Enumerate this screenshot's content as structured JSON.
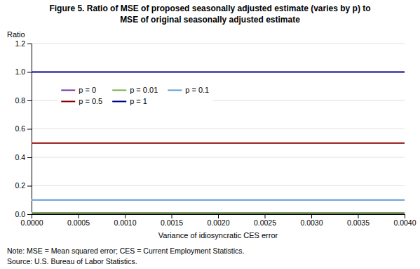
{
  "chart_data": {
    "type": "line",
    "title": "Figure 5. Ratio of MSE of proposed seasonally adjusted estimate (varies by p) to\nMSE of original seasonally adjusted estimate",
    "x_label": "Variance of idiosyncratic CES error",
    "y_label": "Ratio",
    "annotations": [
      "Note: MSE = Mean squared error; CES = Current Employment Statistics.",
      "Source: U.S. Bureau of Labor Statistics."
    ],
    "x": [
      0.0,
      0.004
    ],
    "series": [
      {
        "name": "p = 0",
        "color": "#7030A0",
        "values": [
          0.0,
          0.0
        ]
      },
      {
        "name": "p = 0.01",
        "color": "#70AD47",
        "values": [
          0.01,
          0.01
        ]
      },
      {
        "name": "p = 0.1",
        "color": "#5B9BD5",
        "values": [
          0.1,
          0.1
        ]
      },
      {
        "name": "p = 0.5",
        "color": "#8B0000",
        "values": [
          0.5,
          0.5
        ]
      },
      {
        "name": "p = 1",
        "color": "#00008B",
        "values": [
          1.0,
          1.0
        ]
      }
    ],
    "xlim": [
      0.0,
      0.004
    ],
    "ylim": [
      0.0,
      1.2
    ],
    "xticks": [
      {
        "value": 0.0,
        "label": "0.0000"
      },
      0.0005,
      {
        "value": 0.001,
        "label": "0.0010"
      },
      0.0015,
      {
        "value": 0.002,
        "label": "0.0020"
      },
      0.0025,
      {
        "value": 0.003,
        "label": "0.0030"
      },
      0.0035,
      {
        "value": 0.004,
        "label": "0.0040"
      }
    ],
    "yticks": [
      {
        "value": 0.0,
        "label": "0.0"
      },
      0.2,
      0.4,
      0.6,
      0.8,
      {
        "value": 1.0,
        "label": "1.0"
      },
      1.2
    ],
    "grid": "y",
    "legend": "upper left"
  }
}
